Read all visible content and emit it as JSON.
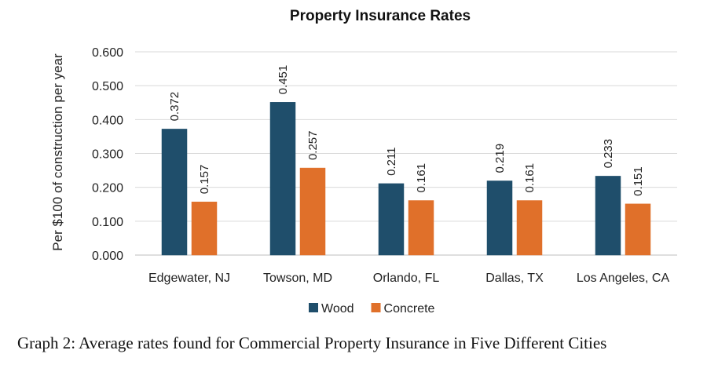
{
  "chart_data": {
    "type": "bar",
    "title": "Property Insurance Rates",
    "xlabel": "",
    "ylabel": "Per $100 of construction per year",
    "categories": [
      "Edgewater, NJ",
      "Towson, MD",
      "Orlando, FL",
      "Dallas, TX",
      "Los Angeles, CA"
    ],
    "series": [
      {
        "name": "Wood",
        "values": [
          0.372,
          0.451,
          0.211,
          0.219,
          0.233
        ],
        "color": "#1f4e6b"
      },
      {
        "name": "Concrete",
        "values": [
          0.157,
          0.257,
          0.161,
          0.161,
          0.151
        ],
        "color": "#e0702a"
      }
    ],
    "ylim": [
      0,
      0.6
    ],
    "yticks": [
      "0.000",
      "0.100",
      "0.200",
      "0.300",
      "0.400",
      "0.500",
      "0.600"
    ],
    "grid": true,
    "legend": "bottom"
  },
  "caption": "Graph 2: Average rates found for Commercial Property Insurance in Five Different Cities"
}
